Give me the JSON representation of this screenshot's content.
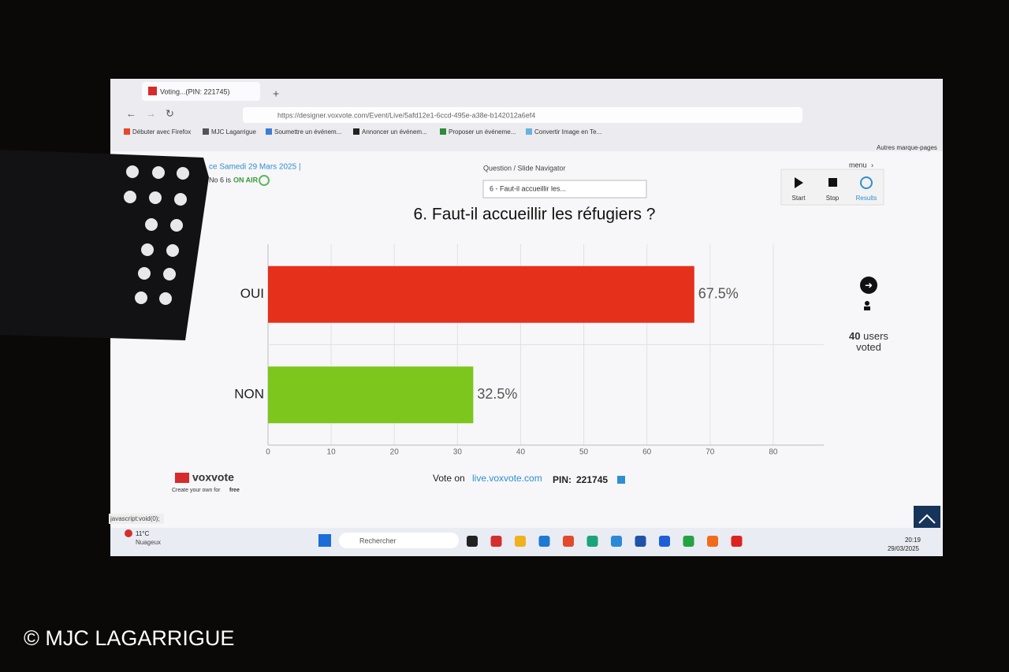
{
  "browser": {
    "tab_title": "Voting...(PIN: 221745)",
    "url": "https://designer.voxvote.com/Event/Live/5afd12e1-6ccd-495e-a38e-b142012a6ef4",
    "bookmarks": [
      "Débuter avec Firefox",
      "MJC Lagarrigue",
      "Soumettre un événem...",
      "Annoncer un événem...",
      "Proposer un événeme...",
      "Convertir Image en Te..."
    ],
    "other_bookmarks": "Autres marque-pages",
    "status": "javascript:void(0);"
  },
  "app": {
    "event_date": "ce Samedi 29 Mars 2025 |",
    "question_status": "No 6 is",
    "on_air": "ON AIR",
    "navigator_label": "Question / Slide Navigator",
    "navigator_value": "6 - Faut-il accueillir les...",
    "menu": "menu",
    "buttons": [
      "Start",
      "Stop",
      "Results"
    ],
    "voters": {
      "count": 40,
      "label": "users voted"
    },
    "logo": "voxvote",
    "tagline": "Create your own for",
    "tagline_bold": "free",
    "vote_on": "Vote on",
    "vote_url": "live.voxvote.com",
    "pin_label": "PIN:",
    "pin": "221745"
  },
  "chart_data": {
    "type": "hbar",
    "title": "6. Faut-il accueillir les réfugiers ?",
    "categories": [
      "OUI",
      "NON"
    ],
    "values": [
      67.5,
      32.5
    ],
    "value_labels": [
      "67.5%",
      "32.5%"
    ],
    "colors": [
      "#e5301c",
      "#7cc61d"
    ],
    "xlim": [
      0,
      88
    ],
    "xticks": [
      0,
      10,
      20,
      30,
      40,
      50,
      60,
      70,
      80
    ],
    "grid": true
  },
  "taskbar": {
    "temperature": "11°C",
    "weather": "Nuageux",
    "search": "Rechercher",
    "time": "20:19",
    "date": "29/03/2025"
  },
  "watermark": "© MJC LAGARRIGUE"
}
